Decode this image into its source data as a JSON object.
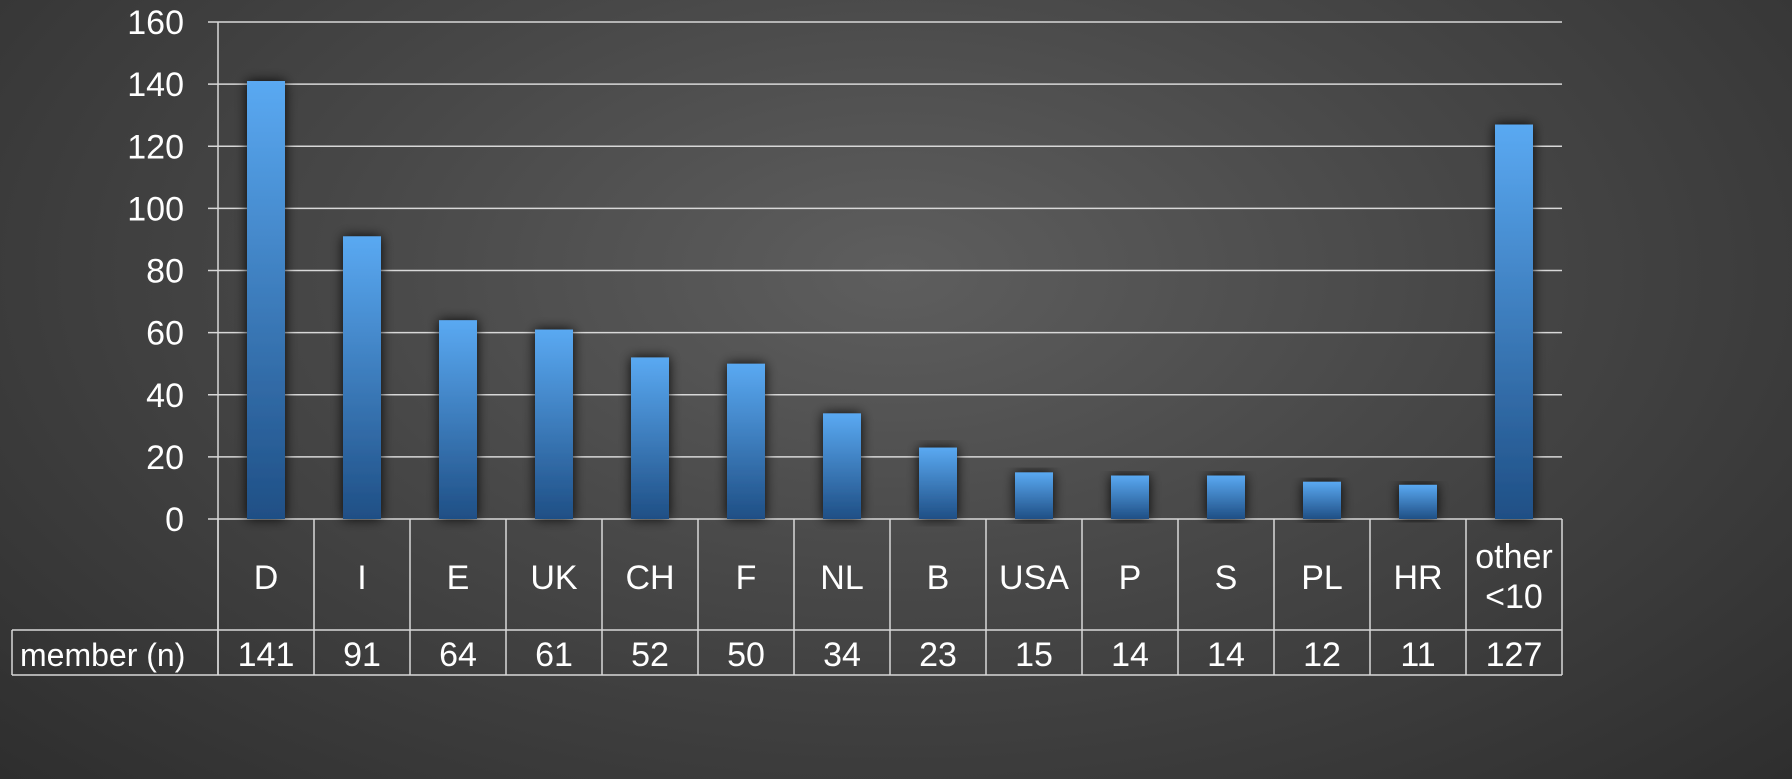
{
  "chart_data": {
    "type": "bar",
    "categories": [
      "D",
      "I",
      "E",
      "UK",
      "CH",
      "F",
      "NL",
      "B",
      "USA",
      "P",
      "S",
      "PL",
      "HR",
      "other\n<10"
    ],
    "series": [
      {
        "name": "member (n)",
        "values": [
          141,
          91,
          64,
          61,
          52,
          50,
          34,
          23,
          15,
          14,
          14,
          12,
          11,
          127
        ]
      }
    ],
    "value_labels": [
      "141",
      "91",
      "64",
      "61",
      "52",
      "50",
      "34",
      "23",
      "15",
      "14",
      "14",
      "12",
      "11",
      "127"
    ],
    "y_ticks": [
      0,
      20,
      40,
      60,
      80,
      100,
      120,
      140,
      160
    ],
    "ylim": [
      0,
      160
    ],
    "title": "",
    "xlabel": "",
    "ylabel": "",
    "grid": true,
    "data_table": true,
    "colors": {
      "bar_top": "#5aa9f2",
      "bar_bottom": "#1f4f85",
      "text": "#ffffff",
      "lines": "#d8d8d8"
    }
  }
}
